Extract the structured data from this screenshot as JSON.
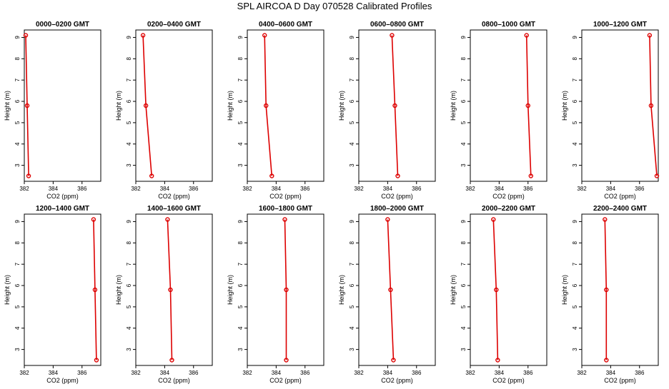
{
  "figure": {
    "title": "SPL AIRCOA D  Day 070528  Calibrated Profiles",
    "line_color": "#dd0000"
  },
  "chart_data": [
    {
      "type": "line",
      "title": "0000–0200 GMT",
      "xlabel": "CO2 (ppm)",
      "ylabel": "Height (m)",
      "xlim": [
        382,
        387.3
      ],
      "ylim": [
        2.25,
        9.35
      ],
      "xticks": [
        382,
        384,
        386
      ],
      "yticks": [
        3,
        4,
        5,
        6,
        7,
        8,
        9
      ],
      "grid": false,
      "series": [
        {
          "x": [
            382.1,
            382.2,
            382.3
          ],
          "y": [
            9.1,
            5.8,
            2.5
          ]
        }
      ]
    },
    {
      "type": "line",
      "title": "0200–0400 GMT",
      "xlabel": "CO2 (ppm)",
      "ylabel": "Height (m)",
      "xlim": [
        382,
        387.3
      ],
      "ylim": [
        2.25,
        9.35
      ],
      "xticks": [
        382,
        384,
        386
      ],
      "yticks": [
        3,
        4,
        5,
        6,
        7,
        8,
        9
      ],
      "grid": false,
      "series": [
        {
          "x": [
            382.5,
            382.7,
            383.1
          ],
          "y": [
            9.1,
            5.8,
            2.5
          ]
        }
      ]
    },
    {
      "type": "line",
      "title": "0400–0600 GMT",
      "xlabel": "CO2 (ppm)",
      "ylabel": "Height (m)",
      "xlim": [
        382,
        387.3
      ],
      "ylim": [
        2.25,
        9.35
      ],
      "xticks": [
        382,
        384,
        386
      ],
      "yticks": [
        3,
        4,
        5,
        6,
        7,
        8,
        9
      ],
      "grid": false,
      "series": [
        {
          "x": [
            383.2,
            383.3,
            383.7
          ],
          "y": [
            9.1,
            5.8,
            2.5
          ]
        }
      ]
    },
    {
      "type": "line",
      "title": "0600–0800 GMT",
      "xlabel": "CO2 (ppm)",
      "ylabel": "Height (m)",
      "xlim": [
        382,
        387.3
      ],
      "ylim": [
        2.25,
        9.35
      ],
      "xticks": [
        382,
        384,
        386
      ],
      "yticks": [
        3,
        4,
        5,
        6,
        7,
        8,
        9
      ],
      "grid": false,
      "series": [
        {
          "x": [
            384.3,
            384.5,
            384.7
          ],
          "y": [
            9.1,
            5.8,
            2.5
          ]
        }
      ]
    },
    {
      "type": "line",
      "title": "0800–1000 GMT",
      "xlabel": "CO2 (ppm)",
      "ylabel": "Height (m)",
      "xlim": [
        382,
        387.3
      ],
      "ylim": [
        2.25,
        9.35
      ],
      "xticks": [
        382,
        384,
        386
      ],
      "yticks": [
        3,
        4,
        5,
        6,
        7,
        8,
        9
      ],
      "grid": false,
      "series": [
        {
          "x": [
            385.9,
            386.0,
            386.2
          ],
          "y": [
            9.1,
            5.8,
            2.5
          ]
        }
      ]
    },
    {
      "type": "line",
      "title": "1000–1200 GMT",
      "xlabel": "CO2 (ppm)",
      "ylabel": "Height (m)",
      "xlim": [
        382,
        387.3
      ],
      "ylim": [
        2.25,
        9.35
      ],
      "xticks": [
        382,
        384,
        386
      ],
      "yticks": [
        3,
        4,
        5,
        6,
        7,
        8,
        9
      ],
      "grid": false,
      "series": [
        {
          "x": [
            386.7,
            386.8,
            387.2
          ],
          "y": [
            9.1,
            5.8,
            2.5
          ]
        }
      ]
    },
    {
      "type": "line",
      "title": "1200–1400 GMT",
      "xlabel": "CO2 (ppm)",
      "ylabel": "Height (m)",
      "xlim": [
        382,
        387.3
      ],
      "ylim": [
        2.25,
        9.35
      ],
      "xticks": [
        382,
        384,
        386
      ],
      "yticks": [
        3,
        4,
        5,
        6,
        7,
        8,
        9
      ],
      "grid": false,
      "series": [
        {
          "x": [
            386.8,
            386.9,
            387.0
          ],
          "y": [
            9.1,
            5.8,
            2.5
          ]
        }
      ]
    },
    {
      "type": "line",
      "title": "1400–1600 GMT",
      "xlabel": "CO2 (ppm)",
      "ylabel": "Height (m)",
      "xlim": [
        382,
        387.3
      ],
      "ylim": [
        2.25,
        9.35
      ],
      "xticks": [
        382,
        384,
        386
      ],
      "yticks": [
        3,
        4,
        5,
        6,
        7,
        8,
        9
      ],
      "grid": false,
      "series": [
        {
          "x": [
            384.2,
            384.4,
            384.5
          ],
          "y": [
            9.1,
            5.8,
            2.5
          ]
        }
      ]
    },
    {
      "type": "line",
      "title": "1600–1800 GMT",
      "xlabel": "CO2 (ppm)",
      "ylabel": "Height (m)",
      "xlim": [
        382,
        387.3
      ],
      "ylim": [
        2.25,
        9.35
      ],
      "xticks": [
        382,
        384,
        386
      ],
      "yticks": [
        3,
        4,
        5,
        6,
        7,
        8,
        9
      ],
      "grid": false,
      "series": [
        {
          "x": [
            384.6,
            384.7,
            384.7
          ],
          "y": [
            9.1,
            5.8,
            2.5
          ]
        }
      ]
    },
    {
      "type": "line",
      "title": "1800–2000 GMT",
      "xlabel": "CO2 (ppm)",
      "ylabel": "Height (m)",
      "xlim": [
        382,
        387.3
      ],
      "ylim": [
        2.25,
        9.35
      ],
      "xticks": [
        382,
        384,
        386
      ],
      "yticks": [
        3,
        4,
        5,
        6,
        7,
        8,
        9
      ],
      "grid": false,
      "series": [
        {
          "x": [
            384.0,
            384.2,
            384.4
          ],
          "y": [
            9.1,
            5.8,
            2.5
          ]
        }
      ]
    },
    {
      "type": "line",
      "title": "2000–2200 GMT",
      "xlabel": "CO2 (ppm)",
      "ylabel": "Height (m)",
      "xlim": [
        382,
        387.3
      ],
      "ylim": [
        2.25,
        9.35
      ],
      "xticks": [
        382,
        384,
        386
      ],
      "yticks": [
        3,
        4,
        5,
        6,
        7,
        8,
        9
      ],
      "grid": false,
      "series": [
        {
          "x": [
            383.6,
            383.8,
            383.9
          ],
          "y": [
            9.1,
            5.8,
            2.5
          ]
        }
      ]
    },
    {
      "type": "line",
      "title": "2200–2400 GMT",
      "xlabel": "CO2 (ppm)",
      "ylabel": "Height (m)",
      "xlim": [
        382,
        387.3
      ],
      "ylim": [
        2.25,
        9.35
      ],
      "xticks": [
        382,
        384,
        386
      ],
      "yticks": [
        3,
        4,
        5,
        6,
        7,
        8,
        9
      ],
      "grid": false,
      "series": [
        {
          "x": [
            383.6,
            383.7,
            383.7
          ],
          "y": [
            9.1,
            5.8,
            2.5
          ]
        }
      ]
    }
  ]
}
